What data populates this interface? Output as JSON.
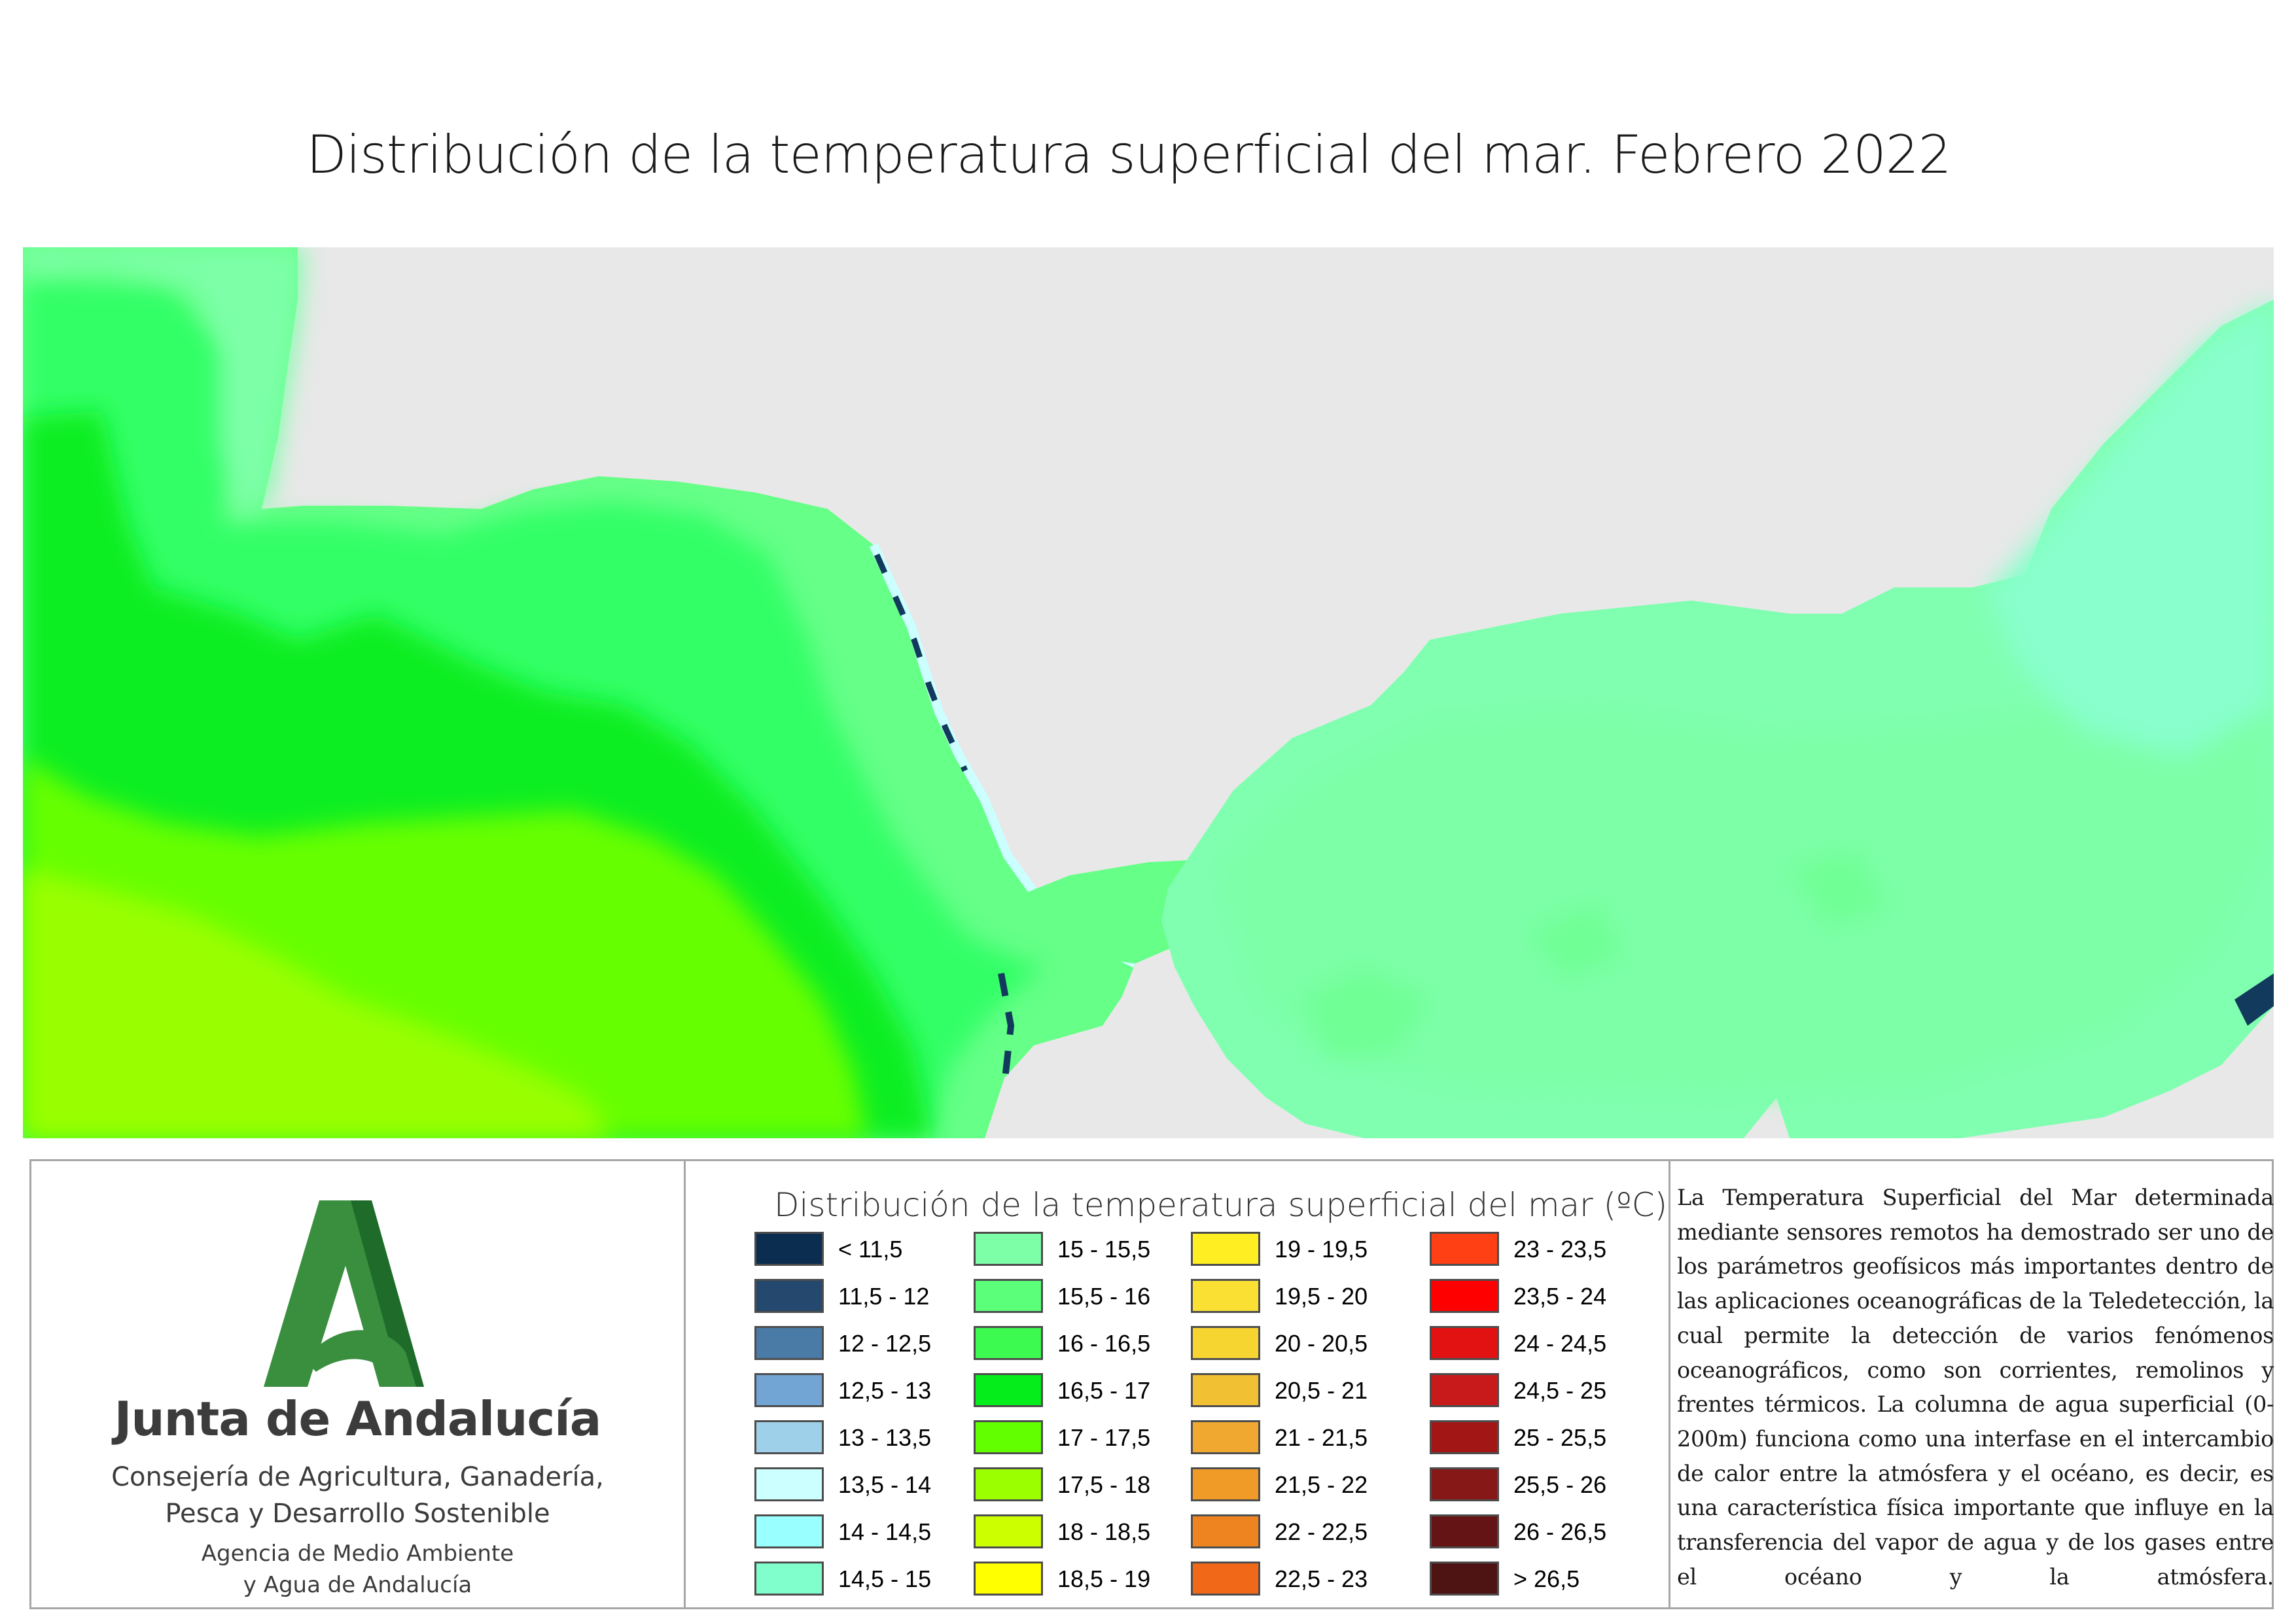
{
  "page": {
    "title": "Distribución de la temperatura superficial del mar. Febrero 2022"
  },
  "map": {
    "land_color": "#e8e8e8",
    "sea_colors": {
      "atlantic_outer": "#33ff66",
      "atlantic_core": "#11ee22",
      "atlantic_warm": "#66ff00",
      "atlantic_warmest": "#99ff00",
      "coastal": "#66ff88",
      "mediterranean": "#7dffb0",
      "cold_coast": "#123a5c"
    }
  },
  "logo": {
    "org_name": "Junta de Andalucía",
    "department_lines": [
      "Consejería de Agricultura, Ganadería,",
      "Pesca y Desarrollo Sostenible"
    ],
    "agency_lines": [
      "Agencia de Medio Ambiente",
      "y Agua de Andalucía"
    ],
    "colors": {
      "primary": "#3a8f3f",
      "dark": "#1e6b2a"
    }
  },
  "legend": {
    "title": "Distribución de la temperatura superficial del mar (ºC)",
    "items": [
      {
        "label": "< 11,5",
        "color": "#0b2d50"
      },
      {
        "label": "11,5 - 12",
        "color": "#24486e"
      },
      {
        "label": "12 - 12,5",
        "color": "#4a7aa6"
      },
      {
        "label": "12,5 - 13",
        "color": "#72a5d3"
      },
      {
        "label": "13 - 13,5",
        "color": "#9fd0ea"
      },
      {
        "label": "13,5 - 14",
        "color": "#ccffff"
      },
      {
        "label": "14 - 14,5",
        "color": "#99ffff"
      },
      {
        "label": "14,5 - 15",
        "color": "#80ffcc"
      },
      {
        "label": "15 - 15,5",
        "color": "#7dffa8"
      },
      {
        "label": "15,5 - 16",
        "color": "#5cff7a"
      },
      {
        "label": "16 - 16,5",
        "color": "#3dfa50"
      },
      {
        "label": "16,5 - 17",
        "color": "#05ee1b"
      },
      {
        "label": "17 - 17,5",
        "color": "#62ff00"
      },
      {
        "label": "17,5 - 18",
        "color": "#9cff00"
      },
      {
        "label": "18 - 18,5",
        "color": "#ccff00"
      },
      {
        "label": "18,5 - 19",
        "color": "#ffff00"
      },
      {
        "label": "19 - 19,5",
        "color": "#ffee22"
      },
      {
        "label": "19,5 - 20",
        "color": "#fae033"
      },
      {
        "label": "20 - 20,5",
        "color": "#f7d531"
      },
      {
        "label": "20,5 - 21",
        "color": "#f2c033"
      },
      {
        "label": "21 - 21,5",
        "color": "#f0a830"
      },
      {
        "label": "21,5 - 22",
        "color": "#f09a28"
      },
      {
        "label": "22 - 22,5",
        "color": "#ee8420"
      },
      {
        "label": "22,5 - 23",
        "color": "#f06818"
      },
      {
        "label": "23 - 23,5",
        "color": "#ff3f14"
      },
      {
        "label": "23,5 - 24",
        "color": "#ff0000"
      },
      {
        "label": "24 - 24,5",
        "color": "#e21212"
      },
      {
        "label": "24,5 - 25",
        "color": "#c81a1a"
      },
      {
        "label": "25 - 25,5",
        "color": "#a31616"
      },
      {
        "label": "25,5 - 26",
        "color": "#861818"
      },
      {
        "label": "26 - 26,5",
        "color": "#641414"
      },
      {
        "label": "> 26,5",
        "color": "#4e1414"
      }
    ]
  },
  "description": {
    "text": "La Temperatura Superficial del Mar determinada mediante sensores remotos ha demostrado ser uno de los parámetros geofísicos más importantes dentro de las aplicaciones oceanográficas de la Teledetección, la cual permite la detección de varios fenómenos oceanográficos, como son corrientes, remolinos y frentes térmicos. La columna de agua superficial (0-200m) funciona como una interfase en el intercambio de calor entre la atmósfera y el océano, es decir, es una característica física importante que influye en la transferencia del vapor de agua y de los gases entre el océano y la atmósfera."
  }
}
